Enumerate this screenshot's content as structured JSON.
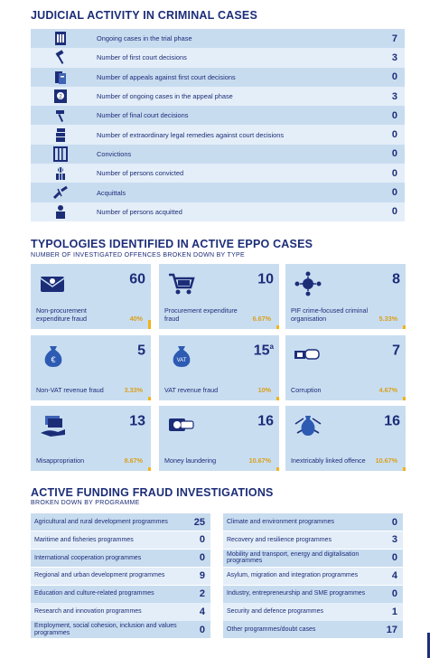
{
  "judicial": {
    "title": "JUDICIAL ACTIVITY IN CRIMINAL CASES",
    "rows": [
      {
        "label": "Ongoing cases in the trial phase",
        "value": "7",
        "icon": "courthouse-icon"
      },
      {
        "label": "Number of first court decisions",
        "value": "3",
        "icon": "gavel-icon"
      },
      {
        "label": "Number of appeals against first court decisions",
        "value": "0",
        "icon": "appeal-documents-icon"
      },
      {
        "label": "Number of ongoing cases in the appeal phase",
        "value": "3",
        "icon": "appeal-courthouse-icon"
      },
      {
        "label": "Number of final court decisions",
        "value": "0",
        "icon": "hammer-icon"
      },
      {
        "label": "Number of extraordinary legal remedies against court decisions",
        "value": "0",
        "icon": "document-stack-icon"
      },
      {
        "label": "Convictions",
        "value": "0",
        "icon": "prison-bars-icon"
      },
      {
        "label": "Number of persons convicted",
        "value": "0",
        "icon": "person-bars-icon"
      },
      {
        "label": "Acquittals",
        "value": "0",
        "icon": "broken-chain-icon"
      },
      {
        "label": "Number of persons acquitted",
        "value": "0",
        "icon": "freed-person-icon"
      }
    ]
  },
  "typologies": {
    "title": "TYPOLOGIES IDENTIFIED IN ACTIVE EPPO CASES",
    "subtitle": "NUMBER OF INVESTIGATED OFFENCES BROKEN DOWN BY TYPE",
    "tiles": [
      {
        "value": "60",
        "sup": "",
        "label": "Non-procurement expenditure fraud",
        "pct": "40%",
        "bar": 0.4,
        "icon": "envelope-money-icon"
      },
      {
        "value": "10",
        "sup": "",
        "label": "Procurement expenditure fraud",
        "pct": "6.67%",
        "bar": 0.0667,
        "icon": "shopping-cart-icon"
      },
      {
        "value": "8",
        "sup": "",
        "label": "PIF crime-focused criminal organisation",
        "pct": "5.33%",
        "bar": 0.0533,
        "icon": "network-icon"
      },
      {
        "value": "5",
        "sup": "",
        "label": "Non-VAT revenue fraud",
        "pct": "3.33%",
        "bar": 0.0333,
        "icon": "euro-bag-icon"
      },
      {
        "value": "15",
        "sup": "a",
        "label": "VAT revenue fraud",
        "pct": "10%",
        "bar": 0.1,
        "icon": "vat-bag-icon"
      },
      {
        "value": "7",
        "sup": "",
        "label": "Corruption",
        "pct": "4.67%",
        "bar": 0.0467,
        "icon": "handshake-money-icon"
      },
      {
        "value": "13",
        "sup": "",
        "label": "Misappropriation",
        "pct": "8.67%",
        "bar": 0.0867,
        "icon": "hand-money-icon"
      },
      {
        "value": "16",
        "sup": "",
        "label": "Money laundering",
        "pct": "10.67%",
        "bar": 0.1067,
        "icon": "washing-money-icon"
      },
      {
        "value": "16",
        "sup": "",
        "label": "Inextricably linked offence",
        "pct": "10.67%",
        "bar": 0.1067,
        "icon": "linked-bag-icon"
      }
    ]
  },
  "funding": {
    "title": "ACTIVE FUNDING FRAUD INVESTIGATIONS",
    "subtitle": "BROKEN DOWN BY PROGRAMME",
    "left": [
      {
        "label": "Agricultural and rural development programmes",
        "value": "25"
      },
      {
        "label": "Maritime and fisheries programmes",
        "value": "0"
      },
      {
        "label": "International cooperation programmes",
        "value": "0"
      },
      {
        "label": "Regional and urban development programmes",
        "value": "9"
      },
      {
        "label": "Education and culture-related programmes",
        "value": "2"
      },
      {
        "label": "Research and innovation programmes",
        "value": "4"
      },
      {
        "label": "Employment, social cohesion, inclusion and values programmes",
        "value": "0"
      }
    ],
    "right": [
      {
        "label": "Climate and environment programmes",
        "value": "0"
      },
      {
        "label": "Recovery and resilience programmes",
        "value": "3"
      },
      {
        "label": "Mobility and transport, energy and digitalisation programmes",
        "value": "0"
      },
      {
        "label": "Asylum, migration and integration programmes",
        "value": "4"
      },
      {
        "label": "Industry, entrepreneurship and SME programmes",
        "value": "0"
      },
      {
        "label": "Security and defence programmes",
        "value": "1"
      },
      {
        "label": "Other programmes/doubt cases",
        "value": "17"
      }
    ]
  },
  "colors": {
    "navy": "#1c2d78",
    "tile": "#c9ddf1",
    "row_dark": "#c8dcf0",
    "row_light": "#e4eef8",
    "accent": "#f2b319"
  }
}
